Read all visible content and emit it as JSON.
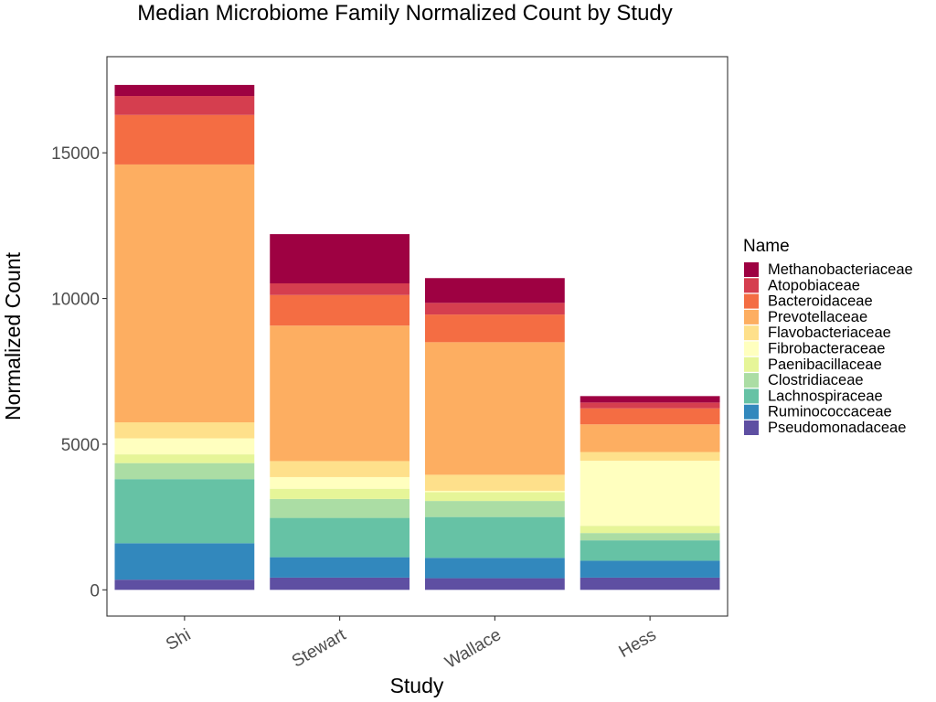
{
  "chart_data": {
    "type": "bar",
    "stacked": true,
    "title": "Median Microbiome Family Normalized Count by Study",
    "xlabel": "Study",
    "ylabel": "Normalized Count",
    "categories": [
      "Shi",
      "Stewart",
      "Wallace",
      "Hess"
    ],
    "ylim": [
      -900,
      18300
    ],
    "yticks": [
      0,
      5000,
      10000,
      15000
    ],
    "ytick_labels": [
      "0",
      "5000",
      "10000",
      "15000"
    ],
    "grid": false,
    "legend_title": "Name",
    "legend_position": "right",
    "series": [
      {
        "name": "Pseudomonadaceae",
        "color": "#5E4FA2",
        "values": [
          350,
          420,
          400,
          420
        ]
      },
      {
        "name": "Ruminococcaceae",
        "color": "#3288BD",
        "values": [
          1250,
          700,
          700,
          580
        ]
      },
      {
        "name": "Lachnospiraceae",
        "color": "#66C2A5",
        "values": [
          2200,
          1350,
          1400,
          700
        ]
      },
      {
        "name": "Clostridiaceae",
        "color": "#ABDDA4",
        "values": [
          550,
          650,
          550,
          250
        ]
      },
      {
        "name": "Paenibacillaceae",
        "color": "#E6F598",
        "values": [
          300,
          350,
          300,
          250
        ]
      },
      {
        "name": "Fibrobacteraceae",
        "color": "#FFFFBF",
        "values": [
          550,
          400,
          50,
          2230
        ]
      },
      {
        "name": "Flavobacteriaceae",
        "color": "#FEE08B",
        "values": [
          550,
          550,
          550,
          300
        ]
      },
      {
        "name": "Prevotellaceae",
        "color": "#FDAE61",
        "values": [
          8850,
          4650,
          4550,
          950
        ]
      },
      {
        "name": "Bacteroidaceae",
        "color": "#F46D43",
        "values": [
          1700,
          1050,
          950,
          550
        ]
      },
      {
        "name": "Atopobiaceae",
        "color": "#D53E4F",
        "values": [
          650,
          400,
          400,
          200
        ]
      },
      {
        "name": "Methanobacteriaceae",
        "color": "#9E0142",
        "values": [
          380,
          1690,
          850,
          220
        ]
      }
    ]
  }
}
